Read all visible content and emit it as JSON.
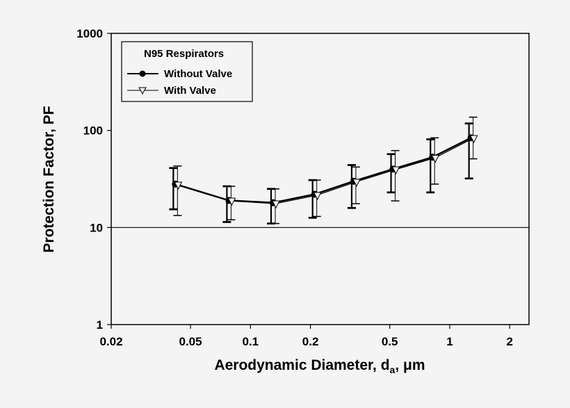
{
  "chart_data": {
    "type": "line",
    "title": "",
    "xlabel": "Aerodynamic Diameter, d",
    "xlabel_sub": "a",
    "xlabel_unit": ", μm",
    "ylabel": "Protection Factor, PF",
    "xscale": "log",
    "yscale": "log",
    "xlim": [
      0.02,
      2.5
    ],
    "ylim": [
      1,
      1000
    ],
    "xticks": [
      0.02,
      0.05,
      0.1,
      0.2,
      0.5,
      1,
      2
    ],
    "xtick_labels": [
      "0.02",
      "0.05",
      "0.1",
      "0.2",
      "0.5",
      "1",
      "2"
    ],
    "yticks": [
      1,
      10,
      100,
      1000
    ],
    "ytick_labels": [
      "1",
      "10",
      "100",
      "1000"
    ],
    "reference_line_y": 10,
    "grid": false,
    "legend": {
      "title": "N95 Respirators",
      "placement": "top-left"
    },
    "x": [
      0.042,
      0.078,
      0.13,
      0.21,
      0.33,
      0.52,
      0.82,
      1.28
    ],
    "series": [
      {
        "name": "Without Valve",
        "marker": "filled-circle",
        "values": [
          28,
          19,
          18,
          22,
          30,
          40,
          53,
          84
        ],
        "err_low": [
          15.4,
          11.4,
          11,
          12.6,
          15.9,
          23,
          23,
          32
        ],
        "err_high": [
          41,
          26.6,
          25,
          30.8,
          44,
          57,
          81,
          118
        ]
      },
      {
        "name": "With Valve",
        "marker": "open-triangle-down",
        "values": [
          27.5,
          18.8,
          17.6,
          21.5,
          29.5,
          39.5,
          52,
          83
        ],
        "err_low": [
          13.3,
          12,
          11,
          13,
          17.6,
          18.8,
          28,
          51
        ],
        "err_high": [
          43,
          26.6,
          25,
          30.8,
          42,
          62,
          84,
          137
        ]
      }
    ]
  }
}
